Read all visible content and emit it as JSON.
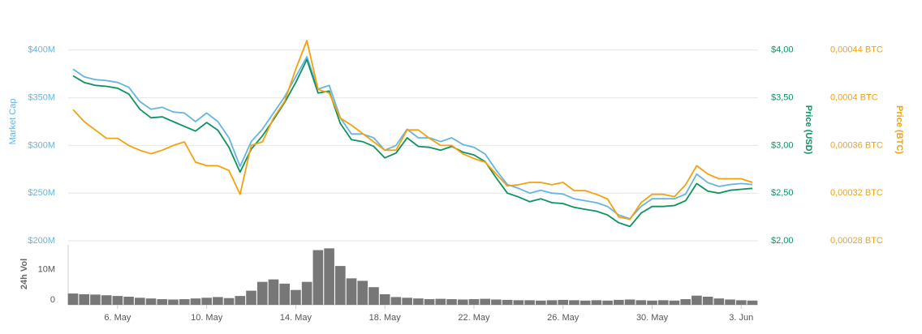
{
  "chart_data": {
    "type": "line",
    "categories": [
      null,
      null,
      null,
      null,
      "6. May",
      null,
      null,
      null,
      null,
      null,
      null,
      null,
      "10. May",
      null,
      null,
      null,
      null,
      null,
      null,
      null,
      "14. May",
      null,
      null,
      null,
      null,
      null,
      null,
      null,
      "18. May",
      null,
      null,
      null,
      null,
      null,
      null,
      null,
      "22. May",
      null,
      null,
      null,
      null,
      null,
      null,
      null,
      "26. May",
      null,
      null,
      null,
      null,
      null,
      null,
      null,
      "30. May",
      null,
      null,
      null,
      null,
      null,
      null,
      null,
      "3. Jun",
      null
    ],
    "ylabel": "Market Cap",
    "y2label": "Price (USD)",
    "y3label": "Price (BTC)",
    "ylim": [
      200000000,
      444000000
    ],
    "yticks": [
      {
        "value": 200000000,
        "label": "$200M"
      },
      {
        "value": 250000000,
        "label": "$250M"
      },
      {
        "value": 300000000,
        "label": "$300M"
      },
      {
        "value": 350000000,
        "label": "$350M"
      },
      {
        "value": 400000000,
        "label": "$400M"
      }
    ],
    "y2lim": [
      2,
      4.44
    ],
    "y2ticks": [
      {
        "value": 2,
        "label": "$2,00"
      },
      {
        "value": 2.5,
        "label": "$2,50"
      },
      {
        "value": 3,
        "label": "$3,00"
      },
      {
        "value": 3.5,
        "label": "$3,50"
      },
      {
        "value": 4,
        "label": "$4,00"
      }
    ],
    "y3lim": [
      0.00028,
      0.0004752
    ],
    "y3ticks": [
      {
        "value": 0.00028,
        "label": "0,00028 BTC"
      },
      {
        "value": 0.00032,
        "label": "0,00032 BTC"
      },
      {
        "value": 0.00036,
        "label": "0,00036 BTC"
      },
      {
        "value": 0.0004,
        "label": "0,0004 BTC"
      },
      {
        "value": 0.00044,
        "label": "0,00044 BTC"
      }
    ],
    "grid": true,
    "series": [
      {
        "color": "#65b5e3",
        "axis": "y",
        "values": [
          380000000,
          372000000,
          369000000,
          368000000,
          366000000,
          361000000,
          346000000,
          338000000,
          340000000,
          335000000,
          334000000,
          325000000,
          334000000,
          325000000,
          308000000,
          278000000,
          304000000,
          317000000,
          334000000,
          351000000,
          372000000,
          393000000,
          359000000,
          363000000,
          329000000,
          312000000,
          312000000,
          308000000,
          295000000,
          300000000,
          317000000,
          308000000,
          308000000,
          304000000,
          308000000,
          301000000,
          298000000,
          291000000,
          274000000,
          259000000,
          255000000,
          250000000,
          253000000,
          250000000,
          249000000,
          244000000,
          242000000,
          240000000,
          236000000,
          227000000,
          223000000,
          236000000,
          244000000,
          244000000,
          244000000,
          249000000,
          270000000,
          261000000,
          257000000,
          259000000,
          260000000,
          259000000
        ]
      },
      {
        "color": "#0e9360",
        "axis": "y2",
        "values": [
          3.73,
          3.66,
          3.63,
          3.62,
          3.6,
          3.54,
          3.38,
          3.29,
          3.3,
          3.25,
          3.2,
          3.15,
          3.24,
          3.16,
          2.98,
          2.72,
          2.96,
          3.1,
          3.27,
          3.45,
          3.66,
          3.9,
          3.55,
          3.57,
          3.23,
          3.06,
          3.04,
          2.99,
          2.87,
          2.92,
          3.08,
          2.99,
          2.98,
          2.95,
          2.99,
          2.93,
          2.9,
          2.83,
          2.66,
          2.5,
          2.46,
          2.41,
          2.44,
          2.4,
          2.39,
          2.35,
          2.33,
          2.31,
          2.27,
          2.19,
          2.15,
          2.29,
          2.36,
          2.36,
          2.37,
          2.42,
          2.6,
          2.52,
          2.5,
          2.53,
          2.54,
          2.55
        ]
      },
      {
        "color": "#f4a10c",
        "axis": "y3",
        "values": [
          0.00039,
          0.00038,
          0.000373,
          0.000366,
          0.000366,
          0.00036,
          0.000356,
          0.000353,
          0.000356,
          0.00036,
          0.000363,
          0.000346,
          0.000343,
          0.000343,
          0.000339,
          0.000319,
          0.00036,
          0.000363,
          0.000383,
          0.000397,
          0.000424,
          0.000448,
          0.000407,
          0.000404,
          0.000383,
          0.000377,
          0.00037,
          0.000363,
          0.000356,
          0.000356,
          0.000373,
          0.000373,
          0.000366,
          0.00036,
          0.00036,
          0.000353,
          0.000349,
          0.000346,
          0.000336,
          0.000326,
          0.000327,
          0.000329,
          0.000329,
          0.000327,
          0.000329,
          0.000322,
          0.000322,
          0.000319,
          0.000315,
          0.0003,
          0.000298,
          0.000312,
          0.000319,
          0.000319,
          0.000317,
          0.000327,
          0.000343,
          0.000336,
          0.000332,
          0.000332,
          0.000332,
          0.000329
        ]
      }
    ],
    "volume": {
      "label": "24h Vol",
      "color": "#777777",
      "ylim": [
        0,
        17000000
      ],
      "yticks": [
        0,
        {
          "value": 10000000,
          "label": "10M"
        }
      ],
      "values": [
        3200000,
        3000000,
        2900000,
        2700000,
        2500000,
        2300000,
        2000000,
        1800000,
        1600000,
        1500000,
        1600000,
        1800000,
        2000000,
        2200000,
        1900000,
        2500000,
        4000000,
        6500000,
        7200000,
        6000000,
        4200000,
        6500000,
        15500000,
        16000000,
        11000000,
        7500000,
        6800000,
        5000000,
        3000000,
        2200000,
        2000000,
        1800000,
        1600000,
        1700000,
        1600000,
        1500000,
        1600000,
        1700000,
        1500000,
        1400000,
        1300000,
        1300000,
        1200000,
        1300000,
        1400000,
        1300000,
        1200000,
        1300000,
        1200000,
        1400000,
        1500000,
        1300000,
        1200000,
        1300000,
        1200000,
        1600000,
        2600000,
        2300000,
        1800000,
        1500000,
        1300000,
        1200000
      ]
    }
  }
}
